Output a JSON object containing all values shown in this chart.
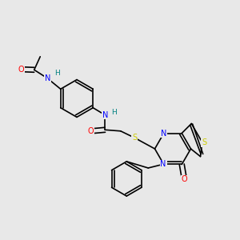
{
  "bg_color": "#e8e8e8",
  "fig_width": 3.0,
  "fig_height": 3.0,
  "dpi": 100,
  "bond_color": "#000000",
  "bond_width": 1.2,
  "atom_colors": {
    "O": "#ff0000",
    "N": "#0000ff",
    "S": "#cccc00",
    "H": "#008080",
    "C": "#000000"
  }
}
